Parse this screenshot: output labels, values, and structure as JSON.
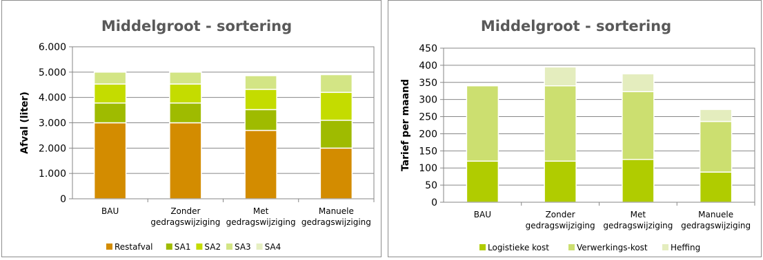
{
  "chart_data": [
    {
      "type": "bar",
      "stacked": true,
      "title": "Middelgroot - sortering",
      "ylabel": "Afval (liter)",
      "xlabel": "",
      "ylim": [
        0,
        6000
      ],
      "yticks": [
        "0",
        "1.000",
        "2.000",
        "3.000",
        "4.000",
        "5.000",
        "6.000"
      ],
      "grid": true,
      "legend_position": "bottom",
      "categories": [
        [
          "BAU"
        ],
        [
          "Zonder",
          "gedragswijziging"
        ],
        [
          "Met",
          "gedragswijziging"
        ],
        [
          "Manuele",
          "gedragswijziging"
        ]
      ],
      "series": [
        {
          "name": "Restafval",
          "color": "#d38c00",
          "values": [
            3000,
            3000,
            2700,
            2000
          ]
        },
        {
          "name": "SA1",
          "color": "#9fbb00",
          "values": [
            780,
            780,
            820,
            1100
          ]
        },
        {
          "name": "SA2",
          "color": "#c4dc00",
          "values": [
            750,
            750,
            800,
            1100
          ]
        },
        {
          "name": "SA3",
          "color": "#d3e585",
          "values": [
            470,
            470,
            540,
            700
          ]
        },
        {
          "name": "SA4",
          "color": "#e6efc2",
          "values": [
            0,
            0,
            0,
            0
          ]
        }
      ]
    },
    {
      "type": "bar",
      "stacked": true,
      "title": "Middelgroot - sortering",
      "ylabel": "Tarief per maand",
      "xlabel": "",
      "ylim": [
        0,
        450
      ],
      "yticks": [
        "0",
        "50",
        "100",
        "150",
        "200",
        "250",
        "300",
        "350",
        "400",
        "450"
      ],
      "grid": true,
      "legend_position": "bottom",
      "categories": [
        [
          "BAU"
        ],
        [
          "Zonder",
          "gedragswijziging"
        ],
        [
          "Met",
          "gedragswijziging"
        ],
        [
          "Manuele",
          "gedragswijziging"
        ]
      ],
      "series": [
        {
          "name": "Logistieke kost",
          "color": "#b0cc00",
          "values": [
            120,
            120,
            125,
            88
          ]
        },
        {
          "name": "Verwerkings-kost",
          "color": "#ccdf70",
          "values": [
            220,
            220,
            198,
            148
          ]
        },
        {
          "name": "Heffing",
          "color": "#e4edbe",
          "values": [
            0,
            55,
            52,
            35
          ]
        }
      ]
    }
  ]
}
